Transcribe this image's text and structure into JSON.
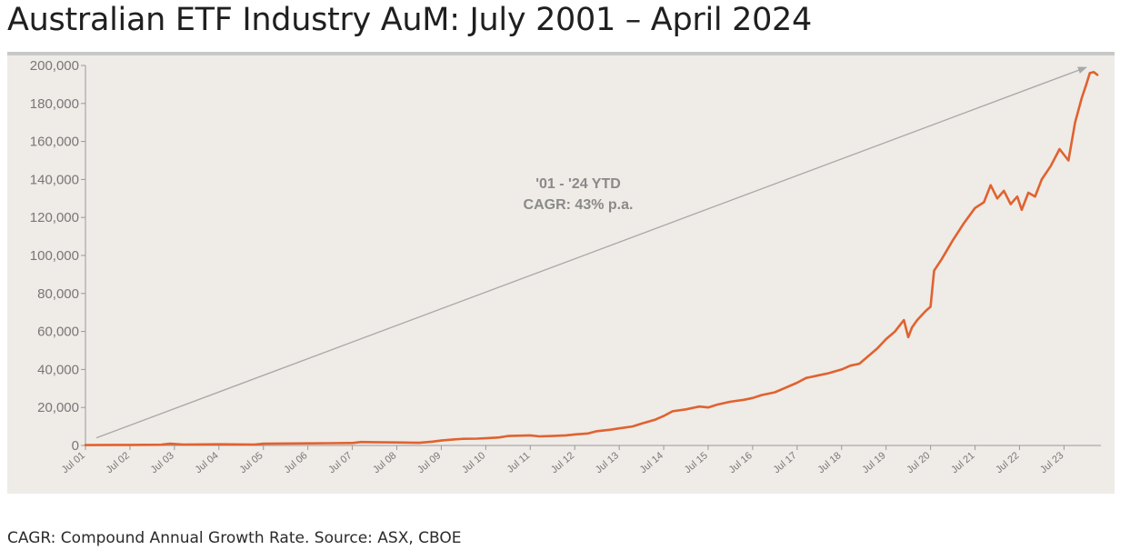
{
  "page": {
    "title": "Australian ETF Industry AuM: July 2001 – April 2024",
    "footnote": "CAGR: Compound Annual Growth Rate. Source: ASX, CBOE"
  },
  "chart_data": {
    "type": "line",
    "title": "Australian ETF Industry AuM: July 2001 – April 2024",
    "xlabel": "",
    "ylabel": "",
    "ylim": [
      0,
      200000
    ],
    "yticks": [
      0,
      20000,
      40000,
      60000,
      80000,
      100000,
      120000,
      140000,
      160000,
      180000,
      200000
    ],
    "ytick_labels": [
      "0",
      "20,000",
      "40,000",
      "60,000",
      "80,000",
      "100,000",
      "120,000",
      "140,000",
      "160,000",
      "180,000",
      "200,000"
    ],
    "xlim": [
      2001.5,
      2024.33
    ],
    "xticks": [
      2001.5,
      2002.5,
      2003.5,
      2004.5,
      2005.5,
      2006.5,
      2007.5,
      2008.5,
      2009.5,
      2010.5,
      2011.5,
      2012.5,
      2013.5,
      2014.5,
      2015.5,
      2016.5,
      2017.5,
      2018.5,
      2019.5,
      2020.5,
      2021.5,
      2022.5,
      2023.5
    ],
    "xtick_labels": [
      "Jul 01",
      "Jul 02",
      "Jul 03",
      "Jul 04",
      "Jul 05",
      "Jul 06",
      "Jul 07",
      "Jul 08",
      "Jul 09",
      "Jul 10",
      "Jul 11",
      "Jul 12",
      "Jul 13",
      "Jul 14",
      "Jul 15",
      "Jul 16",
      "Jul 17",
      "Jul 18",
      "Jul 19",
      "Jul 20",
      "Jul 21",
      "Jul 22",
      "Jul 23"
    ],
    "grid": false,
    "series": [
      {
        "color": "#e0622f",
        "x": [
          2001.5,
          2002.5,
          2003.2,
          2003.4,
          2003.7,
          2004.5,
          2005.3,
          2005.5,
          2005.8,
          2006.5,
          2007.0,
          2007.5,
          2007.7,
          2008.0,
          2008.5,
          2009.0,
          2009.3,
          2009.5,
          2009.8,
          2010.0,
          2010.3,
          2010.5,
          2010.8,
          2011.0,
          2011.5,
          2011.7,
          2012.0,
          2012.3,
          2012.5,
          2012.8,
          2013.0,
          2013.3,
          2013.5,
          2013.8,
          2014.0,
          2014.3,
          2014.5,
          2014.7,
          2015.0,
          2015.3,
          2015.5,
          2015.7,
          2016.0,
          2016.3,
          2016.5,
          2016.7,
          2017.0,
          2017.2,
          2017.5,
          2017.7,
          2018.0,
          2018.2,
          2018.5,
          2018.7,
          2018.9,
          2019.1,
          2019.3,
          2019.5,
          2019.7,
          2019.9,
          2020.0,
          2020.08,
          2020.2,
          2020.4,
          2020.5,
          2020.58,
          2020.75,
          2021.0,
          2021.25,
          2021.5,
          2021.7,
          2021.85,
          2022.0,
          2022.15,
          2022.3,
          2022.45,
          2022.55,
          2022.7,
          2022.85,
          2023.0,
          2023.2,
          2023.4,
          2023.6,
          2023.75,
          2023.9,
          2024.0,
          2024.08,
          2024.17,
          2024.25
        ],
        "values": [
          200,
          300,
          400,
          900,
          500,
          600,
          500,
          900,
          1000,
          1100,
          1200,
          1300,
          1800,
          1700,
          1600,
          1400,
          2000,
          2600,
          3200,
          3500,
          3600,
          3800,
          4200,
          5000,
          5300,
          4800,
          5000,
          5300,
          5800,
          6300,
          7500,
          8300,
          9000,
          10000,
          11500,
          13500,
          15500,
          18000,
          19000,
          20500,
          20000,
          21500,
          23000,
          24000,
          25000,
          26500,
          28000,
          30000,
          33000,
          35500,
          37000,
          38000,
          40000,
          42000,
          43000,
          47000,
          51000,
          56000,
          60000,
          66000,
          57000,
          62000,
          66000,
          71000,
          73000,
          92000,
          98000,
          108000,
          117000,
          125000,
          128000,
          137000,
          130000,
          134000,
          127000,
          131000,
          124000,
          133000,
          131000,
          140000,
          147000,
          156000,
          150000,
          170000,
          183000,
          190000,
          196000,
          196500,
          195000
        ]
      }
    ],
    "annotations": [
      {
        "text": "'01 - '24 YTD"
      },
      {
        "text": "CAGR: 43% p.a."
      }
    ],
    "trend_arrow": {
      "from": [
        2001.5,
        4000
      ],
      "to": [
        2024.0,
        199000
      ],
      "color": "#a8a8a8"
    }
  }
}
